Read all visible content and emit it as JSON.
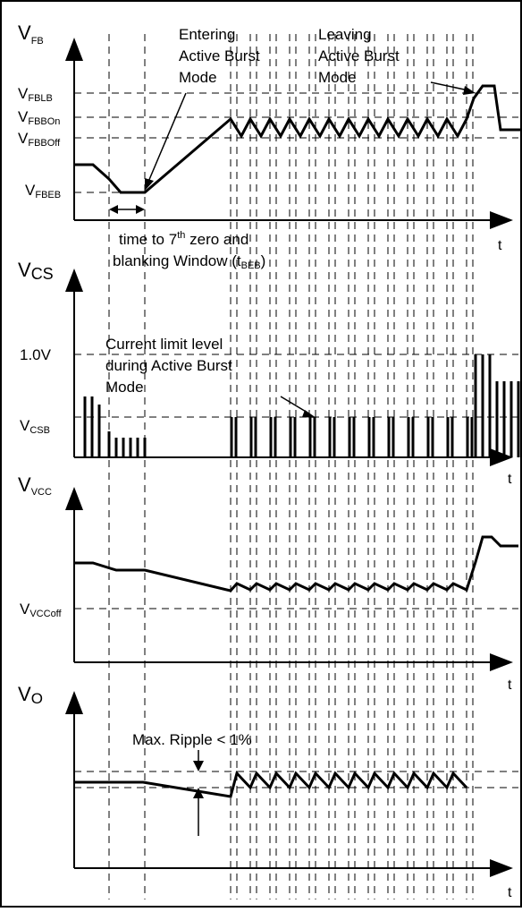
{
  "panels": {
    "fb": {
      "axis_label": "V",
      "axis_sub": "FB",
      "t_label": "t",
      "levels": [
        {
          "key": "flb",
          "main": "V",
          "sub": "FBLB"
        },
        {
          "key": "bon",
          "main": "V",
          "sub": "FBBOn"
        },
        {
          "key": "boff",
          "main": "V",
          "sub": "FBBOff"
        },
        {
          "key": "beb",
          "main": "V",
          "sub": "FBEB"
        }
      ],
      "annotations": {
        "entering": [
          "Entering",
          "Active Burst",
          "Mode"
        ],
        "leaving": [
          "Leaving",
          "Active Burst",
          "Mode"
        ],
        "blanking_line1_a": "time to 7",
        "blanking_line1_sup": "th",
        "blanking_line1_b": " zero and",
        "blanking_line2_a": "blanking Window (t",
        "blanking_line2_sub": "BEB",
        "blanking_line2_b": ")"
      }
    },
    "cs": {
      "axis_label": "V",
      "axis_sub": "CS",
      "t_label": "t",
      "level_1v": "1.0V",
      "level_csb_main": "V",
      "level_csb_sub": "CSB",
      "annotation": [
        "Current limit level",
        "during Active Burst",
        "Mode"
      ]
    },
    "vcc": {
      "axis_label": "V",
      "axis_sub": "VCC",
      "t_label": "t",
      "level_main": "V",
      "level_sub": "VCCoff"
    },
    "vo": {
      "axis_label": "V",
      "axis_sub": "O",
      "t_label": "t",
      "annotation": "Max. Ripple < 1%"
    }
  }
}
